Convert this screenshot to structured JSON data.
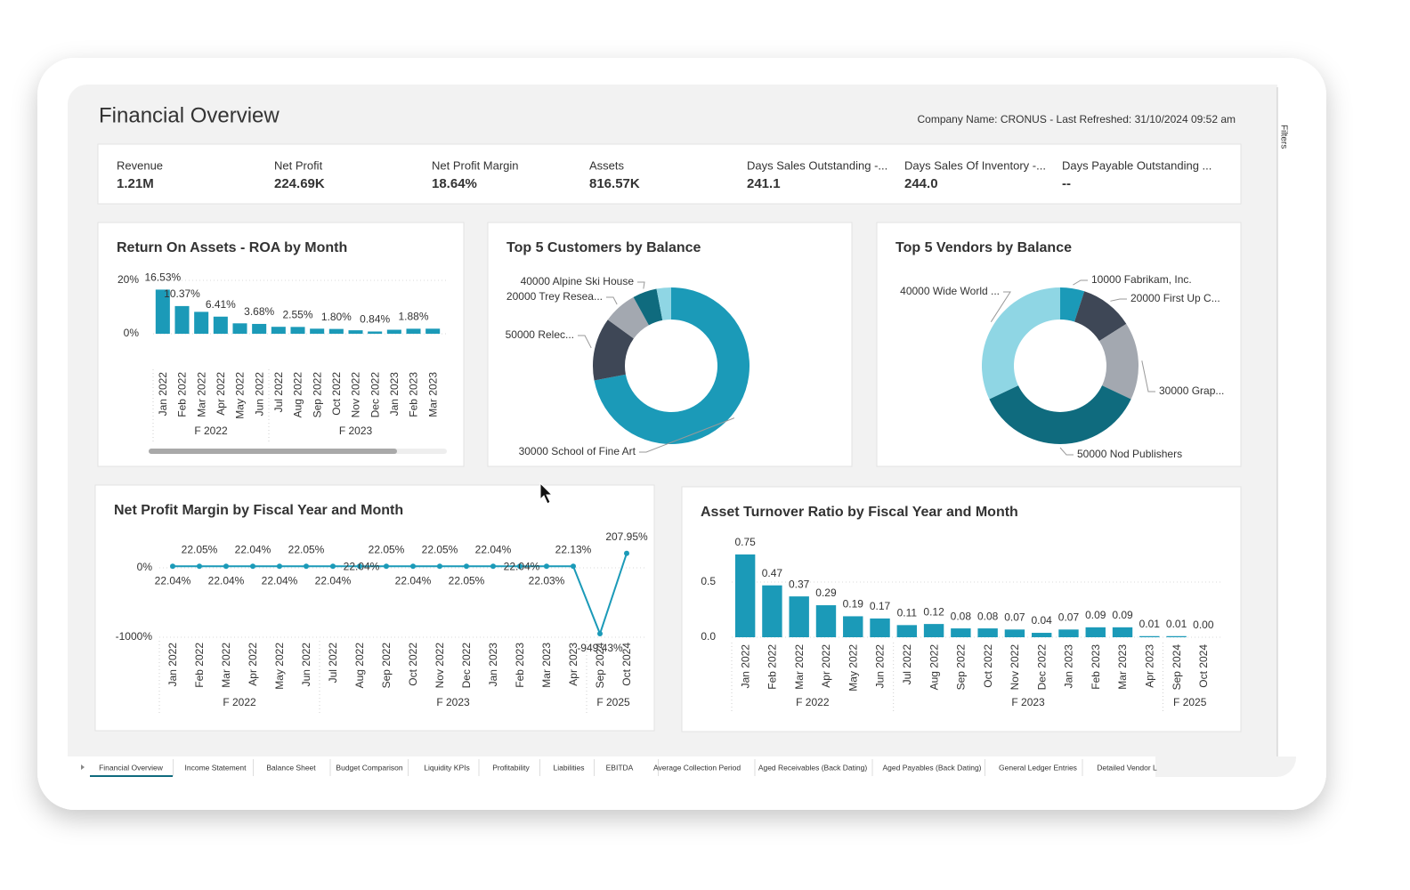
{
  "header": {
    "title": "Financial Overview",
    "info": "Company Name: CRONUS - Last Refreshed: 31/10/2024 09:52 am",
    "filters_label": "Filters"
  },
  "kpis": [
    {
      "label": "Revenue",
      "value": "1.21M"
    },
    {
      "label": "Net Profit",
      "value": "224.69K"
    },
    {
      "label": "Net Profit Margin",
      "value": "18.64%"
    },
    {
      "label": "Assets",
      "value": "816.57K"
    },
    {
      "label": "Days Sales Outstanding -...",
      "value": "241.1"
    },
    {
      "label": "Days Sales Of Inventory -...",
      "value": "244.0"
    },
    {
      "label": "Days Payable Outstanding ...",
      "value": "--"
    }
  ],
  "chart_data": [
    {
      "type": "bar",
      "title": "Return On Assets - ROA by Month",
      "categories": [
        "Jan 2022",
        "Feb 2022",
        "Mar 2022",
        "Apr 2022",
        "May 2022",
        "Jun 2022",
        "Jul 2022",
        "Aug 2022",
        "Sep 2022",
        "Oct 2022",
        "Nov 2022",
        "Dec 2022",
        "Jan 2023",
        "Feb 2023",
        "Mar 2023"
      ],
      "x_groups": [
        {
          "label": "F 2022",
          "span": 6
        },
        {
          "label": "F 2023",
          "span": 9
        }
      ],
      "values": [
        16.53,
        10.37,
        8.2,
        6.41,
        3.9,
        3.68,
        2.6,
        2.55,
        1.9,
        1.8,
        1.3,
        0.84,
        1.5,
        1.88,
        1.9
      ],
      "value_labels": [
        "16.53%",
        "10.37%",
        null,
        "6.41%",
        null,
        "3.68%",
        null,
        "2.55%",
        null,
        "1.80%",
        null,
        "0.84%",
        null,
        "1.88%",
        null
      ],
      "color": "#1b9ab8",
      "ylim": [
        0,
        20
      ],
      "yticks": [
        {
          "value": 0,
          "label": "0%"
        },
        {
          "value": 20,
          "label": "20%"
        }
      ],
      "grid": true
    },
    {
      "type": "donut",
      "title": "Top 5 Customers by Balance",
      "categories": [
        "30000 School of Fine Art",
        "50000 Relec...",
        "20000 Trey Resea...",
        "40000 Alpine Ski House",
        null
      ],
      "values": [
        72,
        13,
        7,
        5,
        3
      ],
      "colors": [
        "#1b9ab8",
        "#3e4756",
        "#a3a8b0",
        "#0f6b7e",
        "#8fd6e4"
      ]
    },
    {
      "type": "donut",
      "title": "Top 5 Vendors by Balance",
      "categories": [
        "10000 Fabrikam, Inc.",
        "20000 First Up C...",
        "30000 Grap...",
        "50000 Nod Publishers",
        "40000 Wide World ..."
      ],
      "values": [
        5,
        11,
        16,
        36,
        32
      ],
      "colors": [
        "#1b9ab8",
        "#3e4756",
        "#a3a8b0",
        "#0f6b7e",
        "#8fd6e4"
      ]
    },
    {
      "type": "line",
      "title": "Net Profit Margin by Fiscal Year and Month",
      "categories": [
        "Jan 2022",
        "Feb 2022",
        "Mar 2022",
        "Apr 2022",
        "May 2022",
        "Jun 2022",
        "Jul 2022",
        "Aug 2022",
        "Sep 2022",
        "Oct 2022",
        "Nov 2022",
        "Dec 2022",
        "Jan 2023",
        "Feb 2023",
        "Mar 2023",
        "Apr 2023",
        "Sep 2024",
        "Oct 2024"
      ],
      "x_groups": [
        {
          "label": "F 2022",
          "span": 6
        },
        {
          "label": "F 2023",
          "span": 10
        },
        {
          "label": "F 2025",
          "span": 2
        }
      ],
      "values": [
        22.04,
        22.05,
        22.04,
        22.04,
        22.04,
        22.05,
        22.04,
        22.04,
        22.05,
        22.04,
        22.05,
        22.05,
        22.04,
        22.04,
        22.03,
        22.13,
        -949.43,
        207.95
      ],
      "value_labels": [
        "22.04%",
        "22.05%",
        "22.04%",
        "22.04%",
        "22.04%",
        "22.05%",
        "22.04%",
        "22.04%",
        "22.05%",
        "22.04%",
        "22.05%",
        "22.05%",
        "22.04%",
        "22.04%",
        "22.03%",
        "22.13%",
        "-949.43%",
        "207.95%"
      ],
      "color": "#1b9ab8",
      "ylim": [
        -1000,
        250
      ],
      "yticks": [
        {
          "value": 0,
          "label": "0%"
        },
        {
          "value": -1000,
          "label": "-1000%"
        }
      ],
      "grid": true
    },
    {
      "type": "bar",
      "title": "Asset Turnover Ratio by Fiscal Year and Month",
      "categories": [
        "Jan 2022",
        "Feb 2022",
        "Mar 2022",
        "Apr 2022",
        "May 2022",
        "Jun 2022",
        "Jul 2022",
        "Aug 2022",
        "Sep 2022",
        "Oct 2022",
        "Nov 2022",
        "Dec 2022",
        "Jan 2023",
        "Feb 2023",
        "Mar 2023",
        "Apr 2023",
        "Sep 2024",
        "Oct 2024"
      ],
      "x_groups": [
        {
          "label": "F 2022",
          "span": 6
        },
        {
          "label": "F 2023",
          "span": 10
        },
        {
          "label": "F 2025",
          "span": 2
        }
      ],
      "values": [
        0.75,
        0.47,
        0.37,
        0.29,
        0.19,
        0.17,
        0.11,
        0.12,
        0.08,
        0.08,
        0.07,
        0.04,
        0.07,
        0.09,
        0.09,
        0.01,
        0.01,
        0.0
      ],
      "value_labels": [
        "0.75",
        "0.47",
        "0.37",
        "0.29",
        "0.19",
        "0.17",
        "0.11",
        "0.12",
        "0.08",
        "0.08",
        "0.07",
        "0.04",
        "0.07",
        "0.09",
        "0.09",
        "0.01",
        "0.01",
        "0.00"
      ],
      "color": "#1b9ab8",
      "ylim": [
        0,
        0.8
      ],
      "yticks": [
        {
          "value": 0,
          "label": "0.0"
        },
        {
          "value": 0.5,
          "label": "0.5"
        }
      ],
      "grid": true
    }
  ],
  "tabs": [
    "Financial Overview",
    "Income Statement",
    "Balance Sheet",
    "Budget Comparison",
    "Liquidity KPIs",
    "Profitability",
    "Liabilities",
    "EBITDA",
    "Average Collection Period",
    "Aged Receivables (Back Dating)",
    "Aged Payables (Back Dating)",
    "General Ledger Entries",
    "Detailed Vendor L"
  ]
}
